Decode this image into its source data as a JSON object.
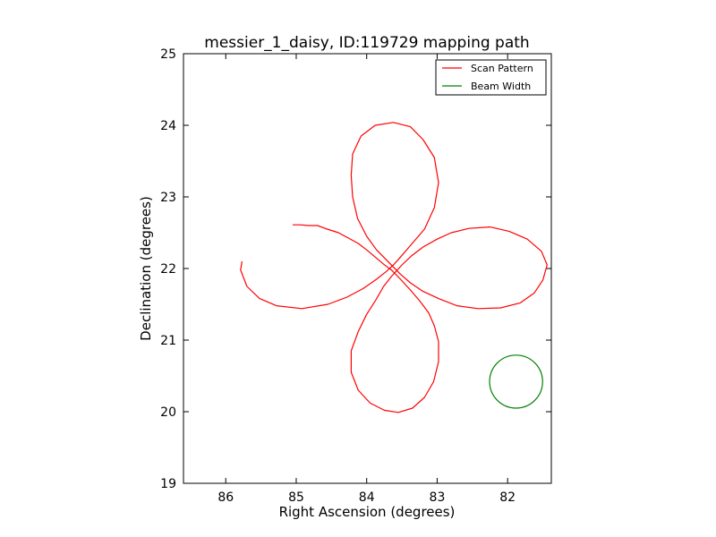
{
  "chart_data": {
    "type": "line",
    "title": "messier_1_daisy, ID:119729 mapping path",
    "xlabel": "Right Ascension (degrees)",
    "ylabel": "Declination (degrees)",
    "xlim": [
      86.6,
      81.38
    ],
    "ylim": [
      19,
      25
    ],
    "x_inverted": true,
    "xticks": [
      86,
      85,
      84,
      83,
      82
    ],
    "yticks": [
      19,
      20,
      21,
      22,
      23,
      24,
      25
    ],
    "grid": false,
    "legend_position": "top-right",
    "series": [
      {
        "name": "Scan Pattern",
        "color": "#ff0000",
        "points": [
          [
            85.05,
            22.61
          ],
          [
            84.95,
            22.61
          ],
          [
            84.82,
            22.6
          ],
          [
            84.7,
            22.6
          ],
          [
            84.56,
            22.55
          ],
          [
            84.4,
            22.5
          ],
          [
            84.25,
            22.42
          ],
          [
            84.12,
            22.35
          ],
          [
            84.0,
            22.26
          ],
          [
            83.88,
            22.16
          ],
          [
            83.76,
            22.06
          ],
          [
            83.65,
            21.98
          ],
          [
            83.52,
            21.85
          ],
          [
            83.38,
            21.7
          ],
          [
            83.25,
            21.55
          ],
          [
            83.12,
            21.38
          ],
          [
            83.04,
            21.2
          ],
          [
            82.98,
            20.98
          ],
          [
            82.98,
            20.7
          ],
          [
            83.05,
            20.42
          ],
          [
            83.18,
            20.2
          ],
          [
            83.35,
            20.05
          ],
          [
            83.55,
            19.99
          ],
          [
            83.75,
            20.02
          ],
          [
            83.95,
            20.12
          ],
          [
            84.12,
            20.3
          ],
          [
            84.22,
            20.55
          ],
          [
            84.22,
            20.85
          ],
          [
            84.12,
            21.12
          ],
          [
            84.0,
            21.36
          ],
          [
            83.87,
            21.56
          ],
          [
            83.76,
            21.75
          ],
          [
            83.64,
            21.9
          ],
          [
            83.5,
            22.05
          ],
          [
            83.36,
            22.18
          ],
          [
            83.2,
            22.3
          ],
          [
            83.0,
            22.41
          ],
          [
            82.8,
            22.5
          ],
          [
            82.55,
            22.56
          ],
          [
            82.25,
            22.58
          ],
          [
            81.98,
            22.52
          ],
          [
            81.72,
            22.41
          ],
          [
            81.52,
            22.24
          ],
          [
            81.44,
            22.05
          ],
          [
            81.5,
            21.84
          ],
          [
            81.62,
            21.66
          ],
          [
            81.82,
            21.52
          ],
          [
            82.1,
            21.45
          ],
          [
            82.42,
            21.44
          ],
          [
            82.72,
            21.48
          ],
          [
            82.98,
            21.58
          ],
          [
            83.2,
            21.68
          ],
          [
            83.38,
            21.8
          ],
          [
            83.52,
            21.92
          ],
          [
            83.62,
            22.02
          ],
          [
            83.72,
            22.12
          ],
          [
            83.86,
            22.26
          ],
          [
            84.0,
            22.45
          ],
          [
            84.13,
            22.7
          ],
          [
            84.2,
            23.0
          ],
          [
            84.22,
            23.3
          ],
          [
            84.2,
            23.6
          ],
          [
            84.08,
            23.85
          ],
          [
            83.88,
            24.0
          ],
          [
            83.62,
            24.04
          ],
          [
            83.38,
            23.98
          ],
          [
            83.2,
            23.8
          ],
          [
            83.04,
            23.55
          ],
          [
            82.98,
            23.2
          ],
          [
            83.04,
            22.85
          ],
          [
            83.18,
            22.55
          ],
          [
            83.38,
            22.32
          ],
          [
            83.52,
            22.16
          ],
          [
            83.62,
            22.05
          ],
          [
            83.72,
            21.96
          ],
          [
            83.86,
            21.85
          ],
          [
            84.05,
            21.72
          ],
          [
            84.28,
            21.6
          ],
          [
            84.55,
            21.5
          ],
          [
            84.92,
            21.44
          ],
          [
            85.28,
            21.48
          ],
          [
            85.52,
            21.58
          ],
          [
            85.7,
            21.75
          ],
          [
            85.79,
            21.98
          ],
          [
            85.77,
            22.1
          ]
        ]
      },
      {
        "name": "Beam Width",
        "color": "#008000",
        "shape": "circle",
        "center": [
          81.88,
          20.42
        ],
        "radius_deg_y": 0.37
      }
    ]
  }
}
